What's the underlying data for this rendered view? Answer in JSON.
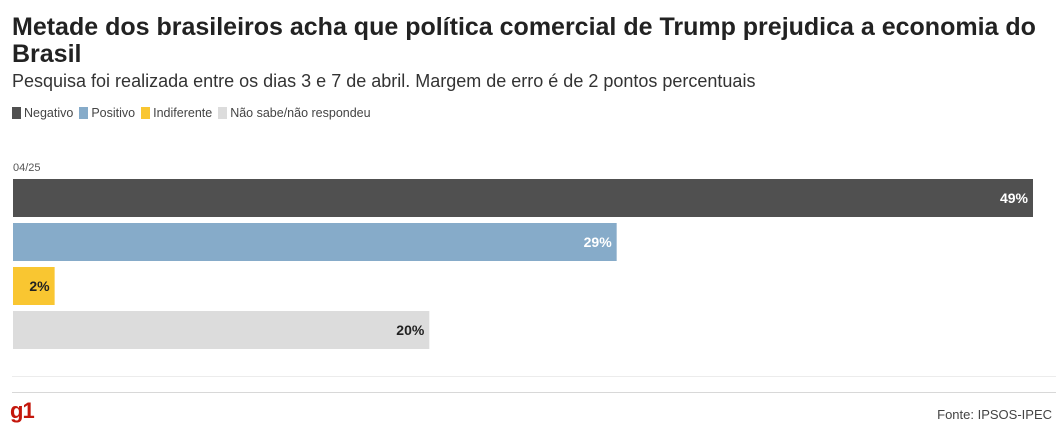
{
  "header": {
    "title": "Metade dos brasileiros acha que política comercial de Trump prejudica a economia do Brasil",
    "subtitle": "Pesquisa foi realizada entre os dias 3 e 7 de abril. Margem de erro é de 2 pontos percentuais"
  },
  "legend": [
    {
      "label": "Negativo",
      "color": "#505050"
    },
    {
      "label": "Positivo",
      "color": "#86abc9"
    },
    {
      "label": "Indiferente",
      "color": "#f9c631"
    },
    {
      "label": "Não sabe/não respondeu",
      "color": "#dcdcdc"
    }
  ],
  "chart_data": {
    "type": "bar",
    "orientation": "horizontal",
    "period_label": "04/25",
    "categories": [
      "Negativo",
      "Positivo",
      "Indiferente",
      "Não sabe/não respondeu"
    ],
    "values": [
      49,
      29,
      2,
      20
    ],
    "value_labels": [
      "49%",
      "29%",
      "2%",
      "20%"
    ],
    "colors": [
      "#505050",
      "#86abc9",
      "#f9c631",
      "#dcdcdc"
    ],
    "label_colors": [
      "#ffffff",
      "#ffffff",
      "#222222",
      "#222222"
    ],
    "xlim": [
      0,
      49
    ],
    "grid": false
  },
  "footer": {
    "logo": "g1",
    "source": "Fonte: IPSOS-IPEC"
  }
}
